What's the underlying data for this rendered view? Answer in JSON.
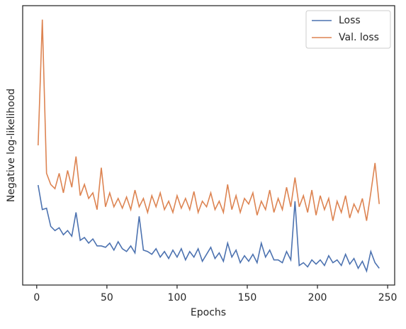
{
  "chart_data": {
    "type": "line",
    "xlabel": "Epochs",
    "ylabel": "Negative log-likelihood",
    "x": [
      1,
      4,
      7,
      10,
      13,
      16,
      19,
      22,
      25,
      28,
      31,
      34,
      37,
      40,
      43,
      46,
      49,
      52,
      55,
      58,
      61,
      64,
      67,
      70,
      73,
      76,
      79,
      82,
      85,
      88,
      91,
      94,
      97,
      100,
      103,
      106,
      109,
      112,
      115,
      118,
      121,
      124,
      127,
      130,
      133,
      136,
      139,
      142,
      145,
      148,
      151,
      154,
      157,
      160,
      163,
      166,
      169,
      172,
      175,
      178,
      181,
      184,
      187,
      190,
      193,
      196,
      199,
      202,
      205,
      208,
      211,
      214,
      217,
      220,
      223,
      226,
      229,
      232,
      235,
      238,
      241,
      244
    ],
    "series": [
      {
        "name": "Loss",
        "color": "#4c72b0",
        "values": [
          3.58,
          2.7,
          2.75,
          2.1,
          1.95,
          2.05,
          1.8,
          1.95,
          1.75,
          2.6,
          1.6,
          1.7,
          1.5,
          1.65,
          1.4,
          1.4,
          1.35,
          1.5,
          1.25,
          1.55,
          1.3,
          1.2,
          1.4,
          1.15,
          2.46,
          1.25,
          1.2,
          1.1,
          1.3,
          1.0,
          1.2,
          0.95,
          1.25,
          1.0,
          1.3,
          0.9,
          1.2,
          1.0,
          1.3,
          0.85,
          1.1,
          1.35,
          0.95,
          1.15,
          0.85,
          1.5,
          1.0,
          1.25,
          0.8,
          1.05,
          0.85,
          1.1,
          0.8,
          1.5,
          1.0,
          1.25,
          0.9,
          0.9,
          0.8,
          1.2,
          0.9,
          3.0,
          0.7,
          0.8,
          0.65,
          0.9,
          0.75,
          0.9,
          0.7,
          1.05,
          0.8,
          0.9,
          0.7,
          1.1,
          0.75,
          0.95,
          0.6,
          0.85,
          0.5,
          1.2,
          0.8,
          0.6
        ]
      },
      {
        "name": "Val. loss",
        "color": "#dd8452",
        "values": [
          5.0,
          9.5,
          4.0,
          3.6,
          3.45,
          4.0,
          3.3,
          4.1,
          3.5,
          4.6,
          3.2,
          3.6,
          3.1,
          3.3,
          2.7,
          4.2,
          2.8,
          3.3,
          2.8,
          3.1,
          2.75,
          3.15,
          2.7,
          3.4,
          2.8,
          3.1,
          2.6,
          3.2,
          2.8,
          3.3,
          2.7,
          3.0,
          2.6,
          3.2,
          2.75,
          3.1,
          2.7,
          3.35,
          2.6,
          3.0,
          2.8,
          3.3,
          2.7,
          3.0,
          2.6,
          3.6,
          2.7,
          3.2,
          2.6,
          3.1,
          2.9,
          3.3,
          2.5,
          3.0,
          2.7,
          3.4,
          2.6,
          3.1,
          2.7,
          3.5,
          2.8,
          3.85,
          2.8,
          3.2,
          2.6,
          3.4,
          2.5,
          3.2,
          2.7,
          3.1,
          2.3,
          3.0,
          2.6,
          3.2,
          2.4,
          2.9,
          2.6,
          3.1,
          2.3,
          3.3,
          4.37,
          2.9
        ]
      }
    ],
    "xlim": [
      -10,
      255
    ],
    "xticks": [
      0,
      50,
      100,
      150,
      200,
      250
    ],
    "ylim": [
      0,
      10
    ],
    "legend": "upper right"
  }
}
